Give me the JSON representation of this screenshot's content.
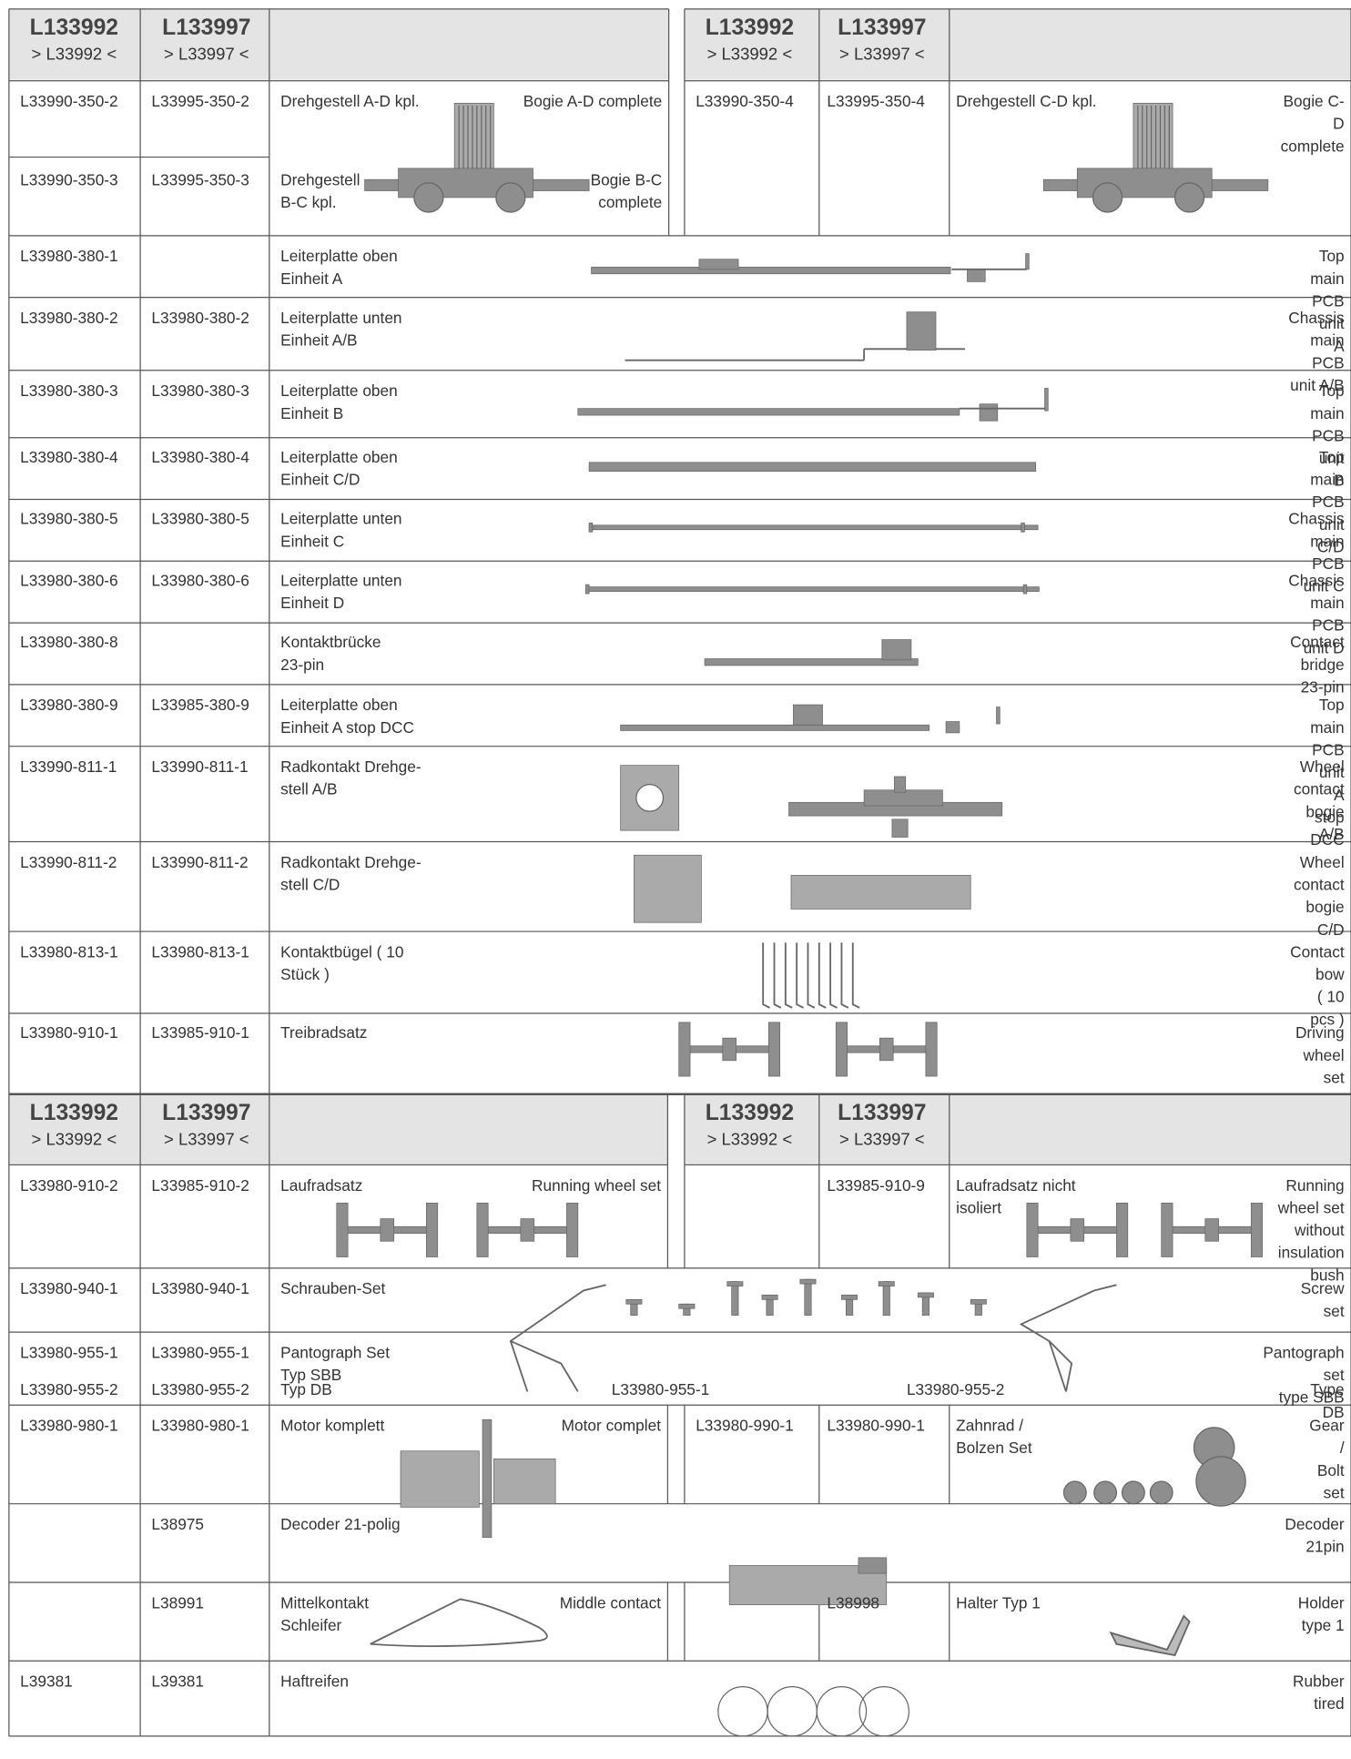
{
  "header": {
    "col1": "L133992",
    "col1_sub": "> L33992 <",
    "col2": "L133997",
    "col2_sub": "> L33997 <"
  },
  "rows": [
    {
      "p1": "L33990-350-2",
      "p2": "L33995-350-2",
      "de": "Drehgestell A-D kpl.",
      "en": "Bogie A-D complete"
    },
    {
      "p1": "L33990-350-3",
      "p2": "L33995-350-3",
      "de": "Drehgestell\nB-C kpl.",
      "en": "Bogie B-C\ncomplete"
    },
    {
      "p1": "L33990-350-4",
      "p2": "L33995-350-4",
      "de": "Drehgestell C-D kpl.",
      "en": "Bogie C-D complete"
    },
    {
      "p1": "L33980-380-1",
      "de": "Leiterplatte oben\nEinheit A",
      "en": "Top main PCB unit A"
    },
    {
      "p1": "L33980-380-2",
      "p2": "L33980-380-2",
      "de": "Leiterplatte unten\nEinheit A/B",
      "en": "Chassis main PCB\nunit A/B"
    },
    {
      "p1": "L33980-380-3",
      "p2": "L33980-380-3",
      "de": "Leiterplatte oben\nEinheit B",
      "en": "Top main PCB\nunit B"
    },
    {
      "p1": "L33980-380-4",
      "p2": "L33980-380-4",
      "de": "Leiterplatte oben\nEinheit C/D",
      "en": "Top main PCB unit\nC/D"
    },
    {
      "p1": "L33980-380-5",
      "p2": "L33980-380-5",
      "de": "Leiterplatte unten\nEinheit C",
      "en": "Chassis main PCB\nunit C"
    },
    {
      "p1": "L33980-380-6",
      "p2": "L33980-380-6",
      "de": "Leiterplatte unten\nEinheit D",
      "en": "Chassis main PCB\nunit D"
    },
    {
      "p1": "L33980-380-8",
      "de": "Kontaktbrücke\n23-pin",
      "en": "Contact bridge\n23-pin"
    },
    {
      "p1": "L33980-380-9",
      "p2": "L33985-380-9",
      "de": "Leiterplatte oben\nEinheit A stop DCC",
      "en": "Top main PCB unit\nA stop DCC"
    },
    {
      "p1": "L33990-811-1",
      "p2": "L33990-811-1",
      "de": "Radkontakt Drehge-\nstell A/B",
      "en": "Wheel contact\nbogie A/B"
    },
    {
      "p1": "L33990-811-2",
      "p2": "L33990-811-2",
      "de": "Radkontakt Drehge-\nstell C/D",
      "en": "Wheel contact\nbogie C/D"
    },
    {
      "p1": "L33980-813-1",
      "p2": "L33980-813-1",
      "de": "Kontaktbügel ( 10\nStück )",
      "en": "Contact bow\n( 10 pcs )"
    },
    {
      "p1": "L33980-910-1",
      "p2": "L33985-910-1",
      "de": "Treibradsatz",
      "en": "Driving wheel set"
    },
    {
      "p1": "L33980-910-2",
      "p2": "L33985-910-2",
      "de": "Laufradsatz",
      "en": "Running wheel set"
    },
    {
      "p2": "L33985-910-9",
      "de": "Laufradsatz nicht\nisoliert",
      "en": "Running wheel set\nwithout insulation\nbush"
    },
    {
      "p1": "L33980-940-1",
      "p2": "L33980-940-1",
      "de": "Schrauben-Set",
      "en": "Screw set"
    },
    {
      "p1": "L33980-955-1",
      "p2": "L33980-955-1",
      "de": "Pantograph Set\nTyp SBB",
      "en": "Pantograph set\ntype SBB"
    },
    {
      "p1": "L33980-955-2",
      "p2": "L33980-955-2",
      "de": "Typ DB",
      "en": "Type DB"
    },
    {
      "p1": "L33980-980-1",
      "p2": "L33980-980-1",
      "de": "Motor komplett",
      "en": "Motor complet"
    },
    {
      "p1": "L33980-990-1",
      "p2": "L33980-990-1",
      "de": "Zahnrad /\nBolzen Set",
      "en": "Gear /\nBolt set"
    },
    {
      "p2": "L38975",
      "de": "Decoder 21-polig",
      "en": "Decoder 21pin"
    },
    {
      "p2": "L38991",
      "de": "Mittelkontakt\nSchleifer",
      "en": "Middle contact"
    },
    {
      "p2": "L38998",
      "de": "Halter Typ 1",
      "en": "Holder type 1"
    },
    {
      "p1": "L39381",
      "p2": "L39381",
      "de": "Haftreifen",
      "en": "Rubber tired"
    }
  ],
  "captions": [
    "L33980-955-1",
    "L33980-955-2"
  ]
}
